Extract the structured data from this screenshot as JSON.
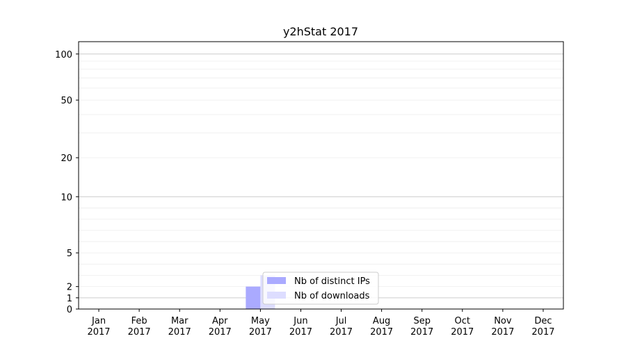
{
  "chart_data": {
    "type": "bar",
    "title": "y2hStat 2017",
    "xlabel": "",
    "ylabel": "",
    "y_scale": "symlog",
    "ylim": [
      0,
      120
    ],
    "y_ticks": [
      0,
      1,
      2,
      5,
      10,
      20,
      50,
      100
    ],
    "grid": true,
    "legend_position": "lower-center",
    "categories": [
      {
        "month": "Jan",
        "year": "2017"
      },
      {
        "month": "Feb",
        "year": "2017"
      },
      {
        "month": "Mar",
        "year": "2017"
      },
      {
        "month": "Apr",
        "year": "2017"
      },
      {
        "month": "May",
        "year": "2017"
      },
      {
        "month": "Jun",
        "year": "2017"
      },
      {
        "month": "Jul",
        "year": "2017"
      },
      {
        "month": "Aug",
        "year": "2017"
      },
      {
        "month": "Sep",
        "year": "2017"
      },
      {
        "month": "Oct",
        "year": "2017"
      },
      {
        "month": "Nov",
        "year": "2017"
      },
      {
        "month": "Dec",
        "year": "2017"
      }
    ],
    "series": [
      {
        "name": "Nb of distinct IPs",
        "color": "#aaaaff",
        "values": [
          0,
          0,
          0,
          0,
          2,
          0,
          0,
          0,
          0,
          0,
          0,
          0
        ]
      },
      {
        "name": "Nb of downloads",
        "color": "#ddddff",
        "values": [
          0,
          0,
          0,
          0,
          3,
          0,
          0,
          0,
          0,
          0,
          0,
          0
        ]
      }
    ]
  }
}
